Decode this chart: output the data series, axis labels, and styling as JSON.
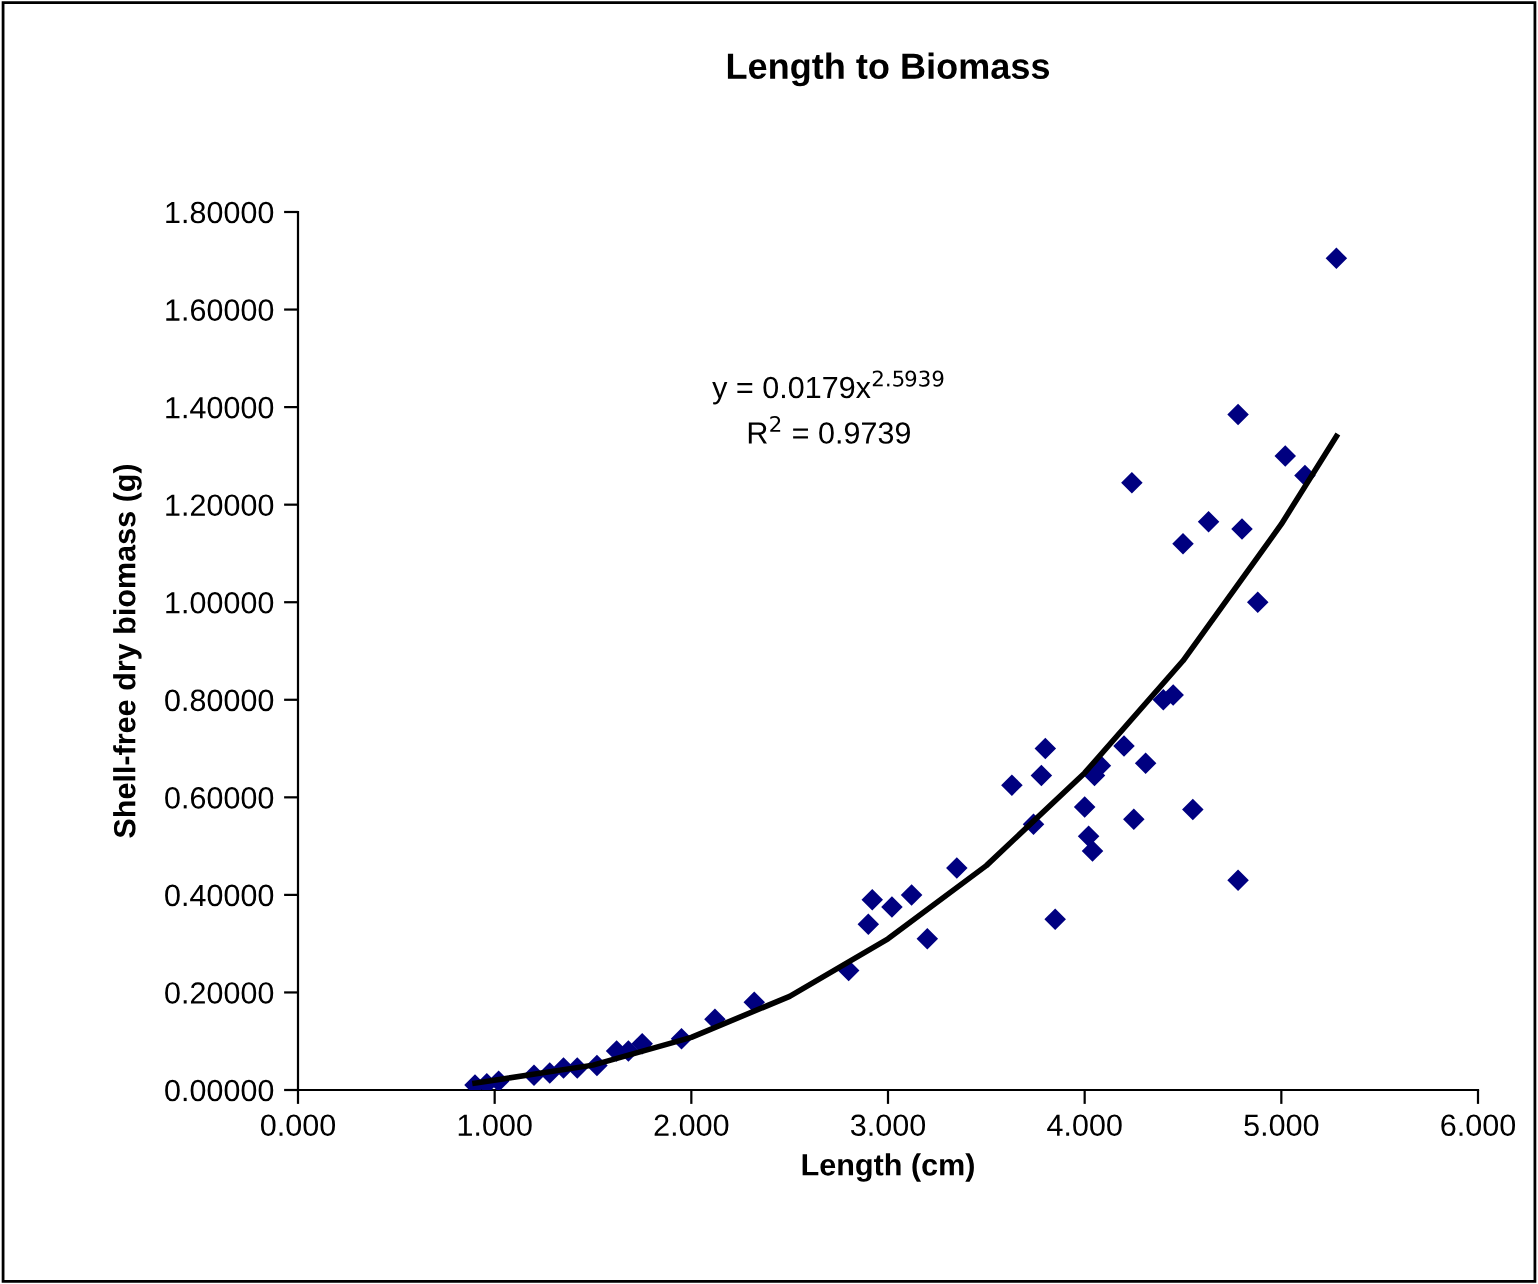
{
  "chart_data": {
    "type": "scatter",
    "title": "Length to Biomass",
    "xlabel": "Length (cm)",
    "ylabel": "Shell-free dry biomass (g)",
    "annotations": [
      "y = 0.0179x$^{2.5939}$",
      "R$^{2}$ = 0.9739"
    ],
    "xlim": [
      0,
      6
    ],
    "ylim": [
      0,
      1.8
    ],
    "xticks": [
      {
        "value": 0,
        "label": "0.000"
      },
      {
        "value": 1,
        "label": "1.000"
      },
      {
        "value": 2,
        "label": "2.000"
      },
      {
        "value": 3,
        "label": "3.000"
      },
      {
        "value": 4,
        "label": "4.000"
      },
      {
        "value": 5,
        "label": "5.000"
      },
      {
        "value": 6,
        "label": "6.000"
      }
    ],
    "yticks": [
      {
        "value": 0,
        "label": "0.00000"
      },
      {
        "value": 0.2,
        "label": "0.20000"
      },
      {
        "value": 0.4,
        "label": "0.40000"
      },
      {
        "value": 0.6,
        "label": "0.60000"
      },
      {
        "value": 0.8,
        "label": "0.80000"
      },
      {
        "value": 1.0,
        "label": "1.00000"
      },
      {
        "value": 1.2,
        "label": "1.20000"
      },
      {
        "value": 1.4,
        "label": "1.40000"
      },
      {
        "value": 1.6,
        "label": "1.60000"
      },
      {
        "value": 1.8,
        "label": "1.80000"
      }
    ],
    "grid": false,
    "legend": false,
    "series": [
      {
        "color": "#000080",
        "marker": "diamond",
        "x": [
          0.9,
          0.96,
          1.02,
          1.2,
          1.28,
          1.35,
          1.42,
          1.52,
          1.62,
          1.68,
          1.75,
          1.95,
          2.12,
          2.32,
          2.8,
          2.9,
          2.92,
          3.02,
          3.12,
          3.2,
          3.35,
          3.63,
          3.74,
          3.78,
          3.8,
          3.85,
          4.0,
          4.02,
          4.04,
          4.05,
          4.08,
          4.2,
          4.25,
          4.24,
          4.31,
          4.4,
          4.45,
          4.5,
          4.55,
          4.63,
          4.78,
          4.78,
          4.8,
          4.88,
          5.02,
          5.12,
          5.28
        ],
        "values": [
          0.01,
          0.013,
          0.018,
          0.03,
          0.035,
          0.045,
          0.045,
          0.05,
          0.08,
          0.08,
          0.095,
          0.105,
          0.145,
          0.18,
          0.245,
          0.34,
          0.39,
          0.375,
          0.4,
          0.31,
          0.455,
          0.625,
          0.545,
          0.645,
          0.7,
          0.35,
          0.58,
          0.52,
          0.49,
          0.645,
          0.665,
          0.705,
          0.555,
          1.245,
          0.67,
          0.8,
          0.81,
          1.12,
          0.575,
          1.165,
          1.385,
          0.43,
          1.15,
          1.0,
          1.3,
          1.26,
          1.705
        ]
      },
      {
        "type": "line",
        "color": "#000000",
        "line_style": "solid",
        "marker": "none",
        "x": [
          0.9,
          1.5,
          2.0,
          2.5,
          3.0,
          3.5,
          4.0,
          4.5,
          5.0,
          5.28
        ],
        "values": [
          0.014,
          0.051,
          0.108,
          0.192,
          0.31,
          0.46,
          0.65,
          0.88,
          1.16,
          1.34
        ]
      }
    ]
  }
}
